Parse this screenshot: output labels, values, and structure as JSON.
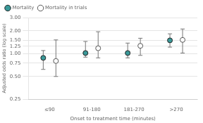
{
  "chart_data": {
    "type": "scatter",
    "xlabel": "Onset to treatment time (minutes)",
    "ylabel": "Adjusted odds ratio (log scale)",
    "categories": [
      "≤90",
      "91-180",
      "181-270",
      ">270"
    ],
    "series": [
      {
        "name": "Mortality",
        "color": "#3a9999",
        "marker": "circle",
        "values": [
          0.88,
          1.02,
          1.02,
          1.5
        ],
        "ci_low": [
          0.62,
          0.9,
          0.88,
          1.22
        ],
        "ci_high": [
          1.1,
          1.45,
          1.38,
          1.83
        ]
      },
      {
        "name": "Mortality in trials",
        "color": "#ffffff",
        "marker": "circle",
        "values": [
          0.8,
          1.18,
          1.27,
          1.52
        ],
        "ci_low": [
          0.5,
          0.88,
          0.95,
          1.02
        ],
        "ci_high": [
          1.52,
          1.95,
          1.6,
          2.12
        ]
      }
    ],
    "log": "y",
    "ylim": [
      0.25,
      3.0
    ],
    "yticks": [
      0.25,
      {
        "value": 0.5,
        "label": "0.50"
      },
      0.75,
      {
        "value": 1,
        "label": "1.00"
      },
      1.25,
      {
        "value": 1.5,
        "label": "1.50"
      },
      {
        "value": 2,
        "label": "2.00"
      },
      {
        "value": 3,
        "label": "3.00"
      }
    ],
    "grid": true,
    "legend": "upper left"
  }
}
